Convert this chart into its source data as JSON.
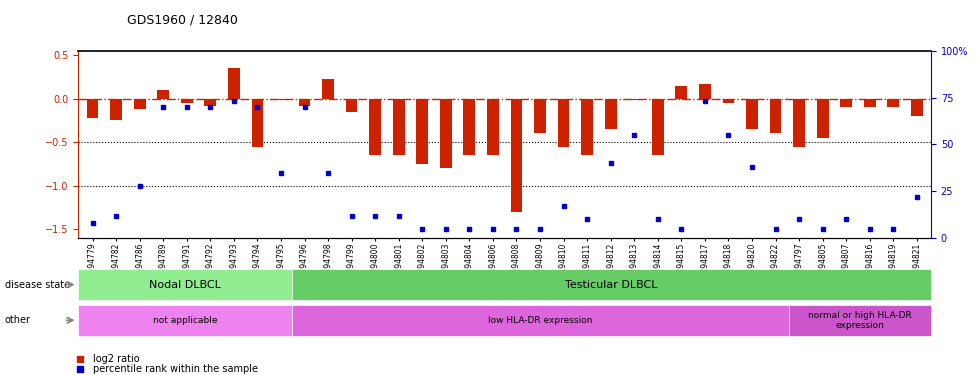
{
  "title": "GDS1960 / 12840",
  "samples": [
    "GSM94779",
    "GSM94782",
    "GSM94786",
    "GSM94789",
    "GSM94791",
    "GSM94792",
    "GSM94793",
    "GSM94794",
    "GSM94795",
    "GSM94796",
    "GSM94798",
    "GSM94799",
    "GSM94800",
    "GSM94801",
    "GSM94802",
    "GSM94803",
    "GSM94804",
    "GSM94806",
    "GSM94808",
    "GSM94809",
    "GSM94810",
    "GSM94811",
    "GSM94812",
    "GSM94813",
    "GSM94814",
    "GSM94815",
    "GSM94817",
    "GSM94818",
    "GSM94820",
    "GSM94822",
    "GSM94797",
    "GSM94805",
    "GSM94807",
    "GSM94816",
    "GSM94819",
    "GSM94821"
  ],
  "log2_ratio": [
    -0.22,
    -0.25,
    -0.12,
    0.1,
    -0.05,
    -0.08,
    0.35,
    -0.55,
    -0.02,
    -0.08,
    0.22,
    -0.15,
    -0.65,
    -0.65,
    -0.75,
    -0.8,
    -0.65,
    -0.65,
    -1.3,
    -0.4,
    -0.55,
    -0.65,
    -0.35,
    -0.02,
    -0.65,
    0.15,
    0.17,
    -0.05,
    -0.35,
    -0.4,
    -0.55,
    -0.45,
    -0.1,
    -0.1,
    -0.1,
    -0.2
  ],
  "percentile": [
    8,
    12,
    28,
    70,
    70,
    70,
    73,
    70,
    35,
    70,
    35,
    12,
    12,
    12,
    5,
    5,
    5,
    5,
    5,
    5,
    17,
    10,
    40,
    55,
    10,
    5,
    73,
    55,
    38,
    5,
    10,
    5,
    10,
    5,
    5,
    22
  ],
  "bar_color": "#cc2200",
  "dot_color": "#0000cc",
  "zero_line_color": "#cc2200",
  "dotted_line_color": "#000000",
  "ylim_left": [
    -1.6,
    0.55
  ],
  "ylim_right": [
    0,
    100
  ],
  "yticks_left": [
    0.5,
    0.0,
    -0.5,
    -1.0,
    -1.5
  ],
  "yticks_right": [
    100,
    75,
    50,
    25,
    0
  ],
  "disease_state_groups": [
    {
      "label": "Nodal DLBCL",
      "start": 0,
      "end": 9,
      "color": "#90ee90"
    },
    {
      "label": "Testicular DLBCL",
      "start": 9,
      "end": 36,
      "color": "#66cc66"
    }
  ],
  "other_groups": [
    {
      "label": "not applicable",
      "start": 0,
      "end": 9,
      "color": "#ee82ee"
    },
    {
      "label": "low HLA-DR expression",
      "start": 9,
      "end": 30,
      "color": "#dd66dd"
    },
    {
      "label": "normal or high HLA-DR\nexpression",
      "start": 30,
      "end": 36,
      "color": "#cc55cc"
    }
  ],
  "legend_items": [
    {
      "label": "log2 ratio",
      "color": "#cc2200"
    },
    {
      "label": "percentile rank within the sample",
      "color": "#0000cc"
    }
  ],
  "disease_state_label": "disease state",
  "other_label": "other"
}
